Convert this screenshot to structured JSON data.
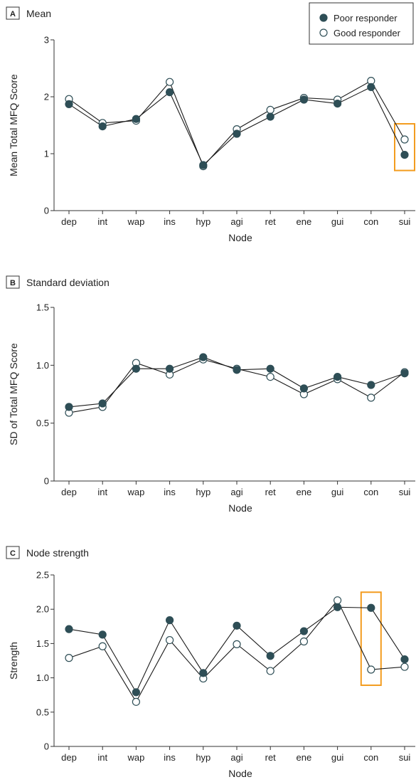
{
  "colors": {
    "poor_fill": "#2e4e56",
    "good_fill": "#ffffff",
    "marker_stroke": "#2e4e56",
    "highlight": "#f39c1f"
  },
  "legend": {
    "poor_label": "Poor responder",
    "good_label": "Good responder",
    "placement": "top-right"
  },
  "chart_data": [
    {
      "id": "A",
      "badge": "A",
      "title": "Mean",
      "type": "line",
      "xlabel": "Node",
      "ylabel": "Mean Total MFQ Score",
      "ylim": [
        0,
        3
      ],
      "yticks": [
        "0",
        "1",
        "2",
        "3"
      ],
      "ytick_values": [
        0,
        1,
        2,
        3
      ],
      "categories": [
        "dep",
        "int",
        "wap",
        "ins",
        "hyp",
        "agi",
        "ret",
        "ene",
        "gui",
        "con",
        "sui"
      ],
      "series": [
        {
          "name": "Poor responder",
          "values": [
            1.87,
            1.48,
            1.61,
            2.08,
            0.8,
            1.35,
            1.65,
            1.95,
            1.88,
            2.17,
            0.98
          ]
        },
        {
          "name": "Good responder",
          "values": [
            1.96,
            1.54,
            1.58,
            2.26,
            0.78,
            1.43,
            1.77,
            1.98,
            1.95,
            2.28,
            1.25
          ]
        }
      ],
      "highlight_category": "sui"
    },
    {
      "id": "B",
      "badge": "B",
      "title": "Standard deviation",
      "type": "line",
      "xlabel": "Node",
      "ylabel": "SD of Total MFQ Score",
      "ylim": [
        0,
        1.5
      ],
      "yticks": [
        "0",
        "0.5",
        "1.0",
        "1.5"
      ],
      "ytick_values": [
        0,
        0.5,
        1.0,
        1.5
      ],
      "categories": [
        "dep",
        "int",
        "wap",
        "ins",
        "hyp",
        "agi",
        "ret",
        "ene",
        "gui",
        "con",
        "sui"
      ],
      "series": [
        {
          "name": "Poor responder",
          "values": [
            0.64,
            0.67,
            0.97,
            0.97,
            1.07,
            0.96,
            0.97,
            0.8,
            0.9,
            0.83,
            0.93
          ]
        },
        {
          "name": "Good responder",
          "values": [
            0.59,
            0.64,
            1.02,
            0.92,
            1.05,
            0.97,
            0.9,
            0.75,
            0.88,
            0.72,
            0.94
          ]
        }
      ],
      "highlight_category": null
    },
    {
      "id": "C",
      "badge": "C",
      "title": "Node strength",
      "type": "line",
      "xlabel": "Node",
      "ylabel": "Strength",
      "ylim": [
        0,
        2.5
      ],
      "yticks": [
        "0",
        "0.5",
        "1.0",
        "1.5",
        "2.0",
        "2.5"
      ],
      "ytick_values": [
        0,
        0.5,
        1.0,
        1.5,
        2.0,
        2.5
      ],
      "categories": [
        "dep",
        "int",
        "wap",
        "ins",
        "hyp",
        "agi",
        "ret",
        "ene",
        "gui",
        "con",
        "sui"
      ],
      "series": [
        {
          "name": "Poor responder",
          "values": [
            1.71,
            1.63,
            0.79,
            1.84,
            1.07,
            1.76,
            1.32,
            1.68,
            2.03,
            2.02,
            1.27
          ]
        },
        {
          "name": "Good responder",
          "values": [
            1.29,
            1.46,
            0.65,
            1.55,
            0.99,
            1.49,
            1.1,
            1.53,
            2.13,
            1.12,
            1.16
          ]
        }
      ],
      "highlight_category": "con"
    }
  ]
}
